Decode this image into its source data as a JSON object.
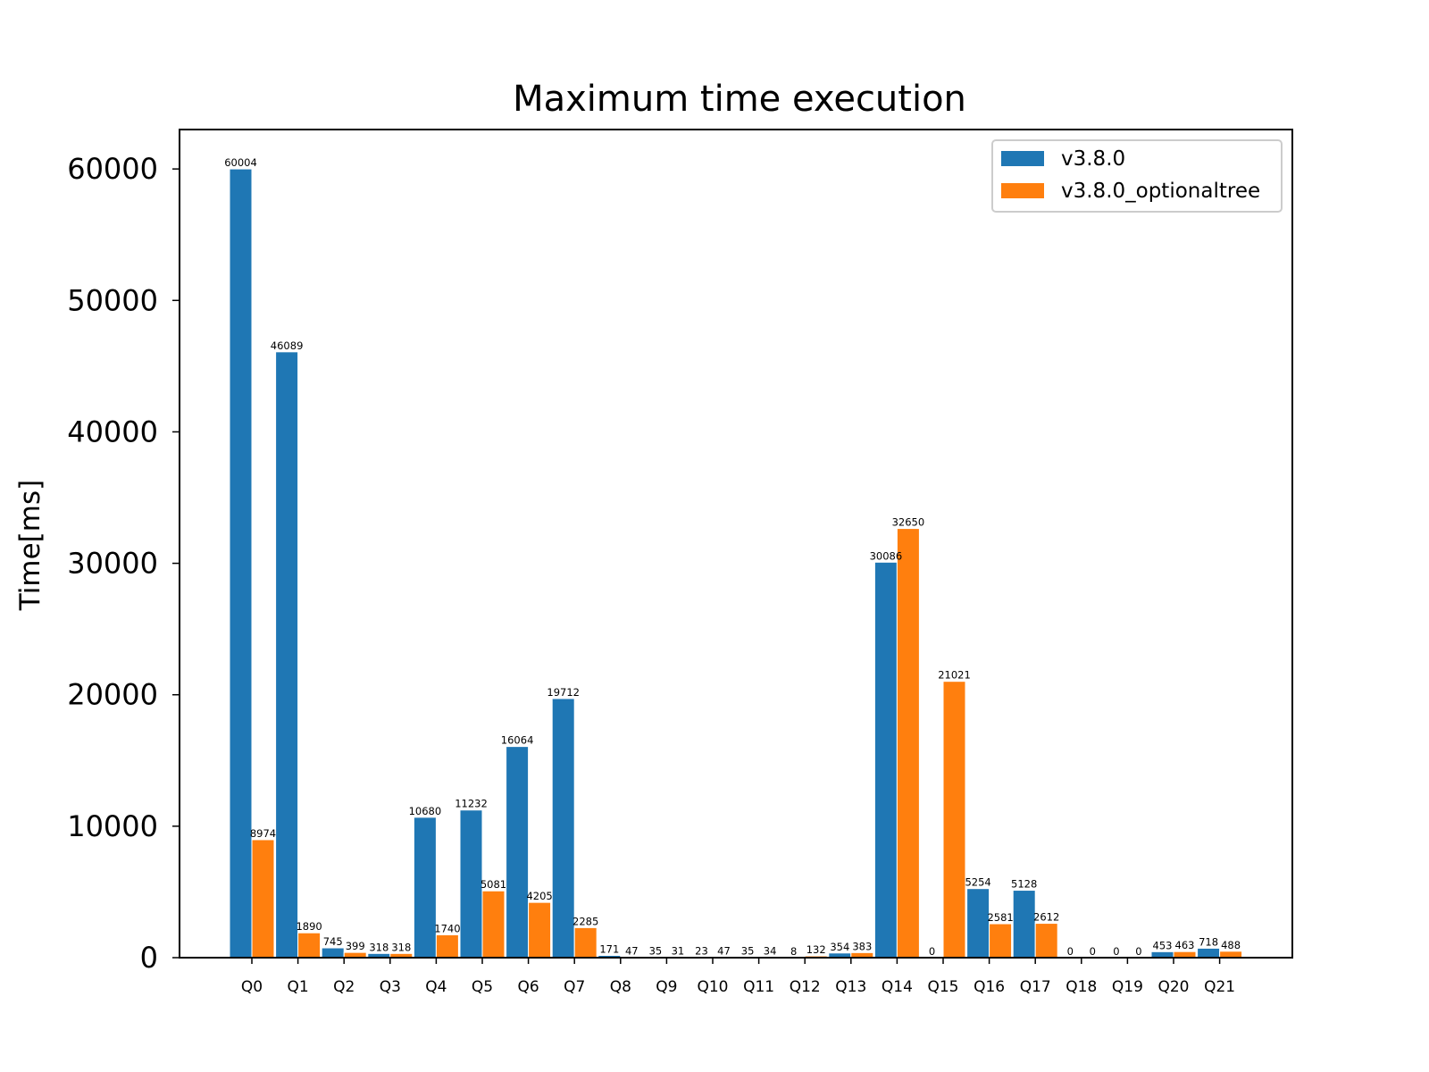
{
  "chart_data": {
    "type": "bar",
    "title": "Maximum time execution",
    "xlabel": "",
    "ylabel": "Time[ms]",
    "ylim": [
      0,
      63000
    ],
    "yticks": [
      0,
      10000,
      20000,
      30000,
      40000,
      50000,
      60000
    ],
    "grid": false,
    "legend_position": "top-right",
    "categories": [
      "Q0",
      "Q1",
      "Q2",
      "Q3",
      "Q4",
      "Q5",
      "Q6",
      "Q7",
      "Q8",
      "Q9",
      "Q10",
      "Q11",
      "Q12",
      "Q13",
      "Q14",
      "Q15",
      "Q16",
      "Q17",
      "Q18",
      "Q19",
      "Q20",
      "Q21"
    ],
    "series": [
      {
        "name": "v3.8.0",
        "color": "#1f77b4",
        "values": [
          60004,
          46089,
          745,
          318,
          10680,
          11232,
          16064,
          19712,
          171,
          35,
          23,
          35,
          8,
          354,
          30086,
          0,
          5254,
          5128,
          0,
          0,
          453,
          718
        ]
      },
      {
        "name": "v3.8.0_optionaltree",
        "color": "#ff7f0e",
        "values": [
          8974,
          1890,
          399,
          318,
          1740,
          5081,
          4205,
          2285,
          47,
          31,
          47,
          34,
          132,
          383,
          32650,
          21021,
          2581,
          2612,
          0,
          0,
          463,
          488
        ]
      }
    ]
  }
}
